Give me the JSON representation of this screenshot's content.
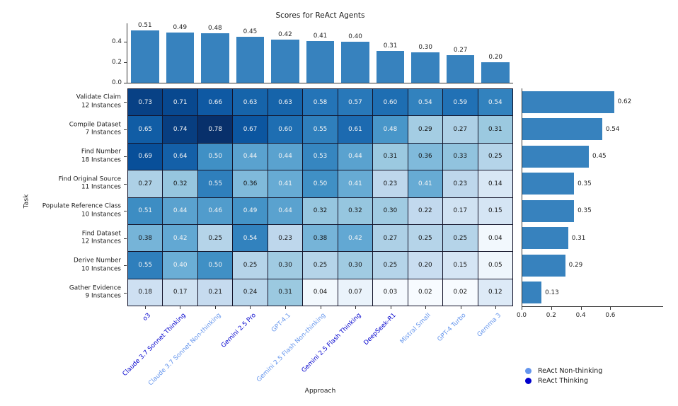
{
  "title": "Scores for ReAct Agents",
  "xlabel": "Approach",
  "ylabel": "Task",
  "legend": [
    {
      "label": "ReAct Non-thinking",
      "color": "#6495ED"
    },
    {
      "label": "ReAct Thinking",
      "color": "#0000CD"
    }
  ],
  "colors": {
    "bar_fill": "#3782BE",
    "thinking_label": "#0000CD",
    "non_thinking_label": "#6495ED",
    "heatmap_min": "#f7fbff",
    "heatmap_max": "#08306b",
    "gridline": "#14142a"
  },
  "chart_data": {
    "type": "heatmap",
    "title": "Scores for ReAct Agents",
    "xlabel": "Approach",
    "ylabel": "Task",
    "colormap": "Blues",
    "colormap_domain": [
      0.02,
      0.78
    ],
    "columns": [
      {
        "label": "o3",
        "thinking": true
      },
      {
        "label": "Claude 3.7 Sonnet Thinking",
        "thinking": true
      },
      {
        "label": "Claude 3.7 Sonnet Non-thinking",
        "thinking": false
      },
      {
        "label": "Gemini 2.5 Pro",
        "thinking": true
      },
      {
        "label": "GPT-4.1",
        "thinking": false
      },
      {
        "label": "Gemini 2.5 Flash Non-thinking",
        "thinking": false
      },
      {
        "label": "Gemini 2.5 Flash Thinking",
        "thinking": true
      },
      {
        "label": "DeepSeek-R1",
        "thinking": true
      },
      {
        "label": "Mistral Small",
        "thinking": false
      },
      {
        "label": "GPT-4 Turbo",
        "thinking": false
      },
      {
        "label": "Gemma 3",
        "thinking": false
      }
    ],
    "rows": [
      {
        "task": "Validate Claim",
        "instances": "12 Instances",
        "values": [
          0.73,
          0.71,
          0.66,
          0.63,
          0.63,
          0.58,
          0.57,
          0.6,
          0.54,
          0.59,
          0.54
        ],
        "mean": 0.62
      },
      {
        "task": "Compile Dataset",
        "instances": "7 Instances",
        "values": [
          0.65,
          0.74,
          0.78,
          0.67,
          0.6,
          0.55,
          0.61,
          0.48,
          0.29,
          0.27,
          0.31
        ],
        "mean": 0.54
      },
      {
        "task": "Find Number",
        "instances": "18 Instances",
        "values": [
          0.69,
          0.64,
          0.5,
          0.44,
          0.44,
          0.53,
          0.44,
          0.31,
          0.36,
          0.33,
          0.25
        ],
        "mean": 0.45
      },
      {
        "task": "Find Original Source",
        "instances": "11 Instances",
        "values": [
          0.27,
          0.32,
          0.55,
          0.36,
          0.41,
          0.5,
          0.41,
          0.23,
          0.41,
          0.23,
          0.14
        ],
        "mean": 0.35
      },
      {
        "task": "Populate Reference Class",
        "instances": "10 Instances",
        "values": [
          0.51,
          0.44,
          0.46,
          0.49,
          0.44,
          0.32,
          0.32,
          0.3,
          0.22,
          0.17,
          0.15
        ],
        "mean": 0.35
      },
      {
        "task": "Find Dataset",
        "instances": "12 Instances",
        "values": [
          0.38,
          0.42,
          0.25,
          0.54,
          0.23,
          0.38,
          0.42,
          0.27,
          0.25,
          0.25,
          0.04
        ],
        "mean": 0.31
      },
      {
        "task": "Derive Number",
        "instances": "10 Instances",
        "values": [
          0.55,
          0.4,
          0.5,
          0.25,
          0.3,
          0.25,
          0.3,
          0.25,
          0.2,
          0.15,
          0.05
        ],
        "mean": 0.29
      },
      {
        "task": "Gather Evidence",
        "instances": "9 Instances",
        "values": [
          0.18,
          0.17,
          0.21,
          0.24,
          0.31,
          0.04,
          0.07,
          0.03,
          0.02,
          0.02,
          0.12
        ],
        "mean": 0.13
      }
    ],
    "column_means": [
      0.51,
      0.49,
      0.48,
      0.45,
      0.42,
      0.41,
      0.4,
      0.31,
      0.3,
      0.27,
      0.2
    ],
    "row_means": [
      0.62,
      0.54,
      0.45,
      0.35,
      0.35,
      0.31,
      0.29,
      0.13
    ],
    "top_axis": {
      "ticks": [
        0.0,
        0.2,
        0.4
      ],
      "lim": [
        0,
        0.58
      ],
      "position": "top-marginal-bar"
    },
    "right_axis": {
      "ticks": [
        0.0,
        0.2,
        0.4,
        0.6
      ],
      "lim": [
        0,
        0.97
      ],
      "position": "right-marginal-bar"
    },
    "legend_position": "lower right"
  }
}
